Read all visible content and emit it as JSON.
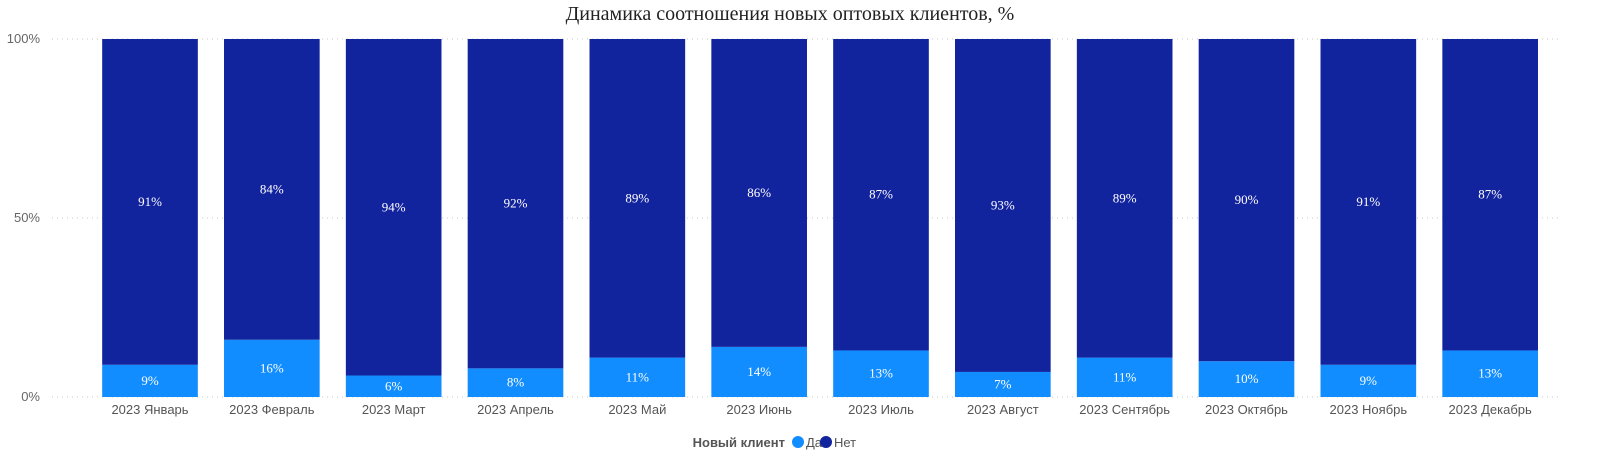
{
  "chart_data": {
    "type": "bar",
    "stacked": "percent",
    "title": "Динамика соотношения новых оптовых клиентов, %",
    "xlabel": "",
    "ylabel": "",
    "ylim": [
      0,
      100
    ],
    "y_ticks": [
      "0%",
      "50%",
      "100%"
    ],
    "grid": true,
    "legend": {
      "title": "Новый клиент",
      "position": "bottom-center"
    },
    "categories": [
      "2023 Январь",
      "2023 Февраль",
      "2023 Март",
      "2023 Апрель",
      "2023 Май",
      "2023 Июнь",
      "2023 Июль",
      "2023 Август",
      "2023 Сентябрь",
      "2023 Октябрь",
      "2023 Ноябрь",
      "2023 Декабрь"
    ],
    "series": [
      {
        "name": "Да",
        "color": "#118DFF",
        "values": [
          9,
          16,
          6,
          8,
          11,
          14,
          13,
          7,
          11,
          10,
          9,
          13
        ],
        "labels": [
          "9%",
          "16%",
          "6%",
          "8%",
          "11%",
          "14%",
          "13%",
          "7%",
          "11%",
          "10%",
          "9%",
          "13%"
        ]
      },
      {
        "name": "Нет",
        "color": "#12239E",
        "values": [
          91,
          84,
          94,
          92,
          89,
          86,
          87,
          93,
          89,
          90,
          91,
          87
        ],
        "labels": [
          "91%",
          "84%",
          "94%",
          "92%",
          "89%",
          "86%",
          "87%",
          "93%",
          "89%",
          "90%",
          "91%",
          "87%"
        ]
      }
    ]
  }
}
